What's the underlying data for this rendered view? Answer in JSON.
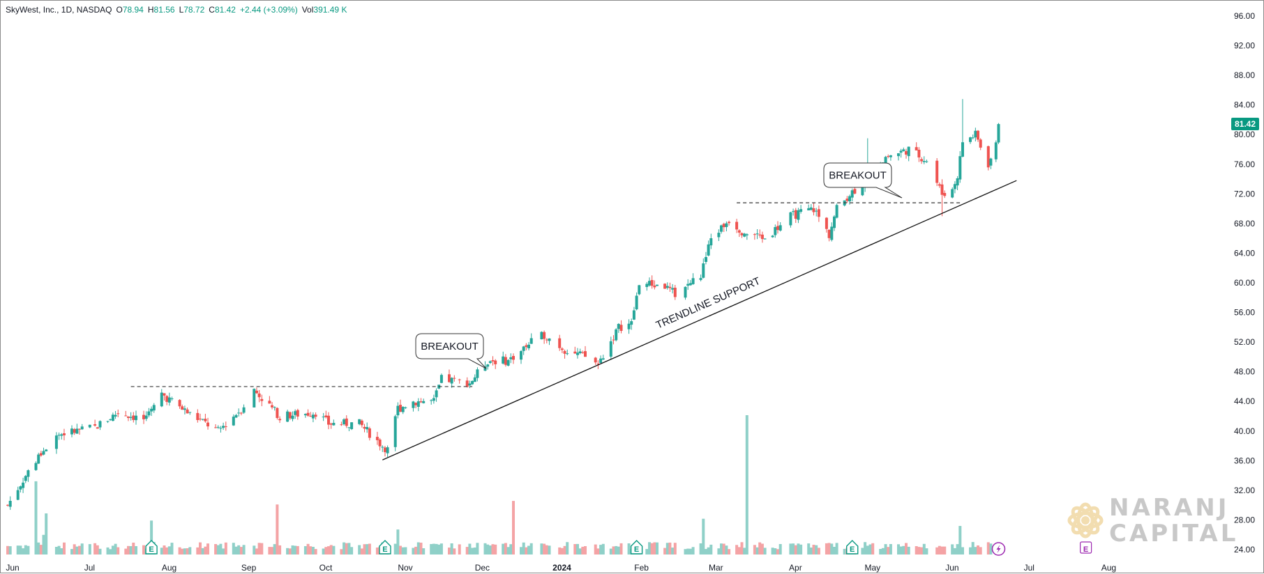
{
  "header": {
    "symbol": "SkyWest, Inc., 1D, NASDAQ",
    "open_label": "O",
    "open": "78.94",
    "high_label": "H",
    "high": "81.56",
    "low_label": "L",
    "low": "78.72",
    "close_label": "C",
    "close": "81.42",
    "change": "+2.44 (+3.09%)",
    "vol_label": "Vol",
    "volume": "391.49 K"
  },
  "last_price_tag": "81.42",
  "annotations": {
    "breakout_1": "BREAKOUT",
    "breakout_2": "BREAKOUT",
    "trendline_label": "TRENDLINE SUPPORT"
  },
  "watermark": {
    "line1": "NARANJ",
    "line2": "CAPITAL"
  },
  "colors": {
    "up": "#26a69a",
    "down": "#ef5350",
    "up_volume": "#8fd0c8",
    "down_volume": "#f4a3a5",
    "price_tag": "#089981",
    "earnings_marker": "#089981",
    "dividend_marker": "#9c27b0"
  },
  "chart_data": {
    "type": "candlestick",
    "x_axis": {
      "labels": [
        "Jun",
        "Jul",
        "Aug",
        "Sep",
        "Oct",
        "Nov",
        "Dec",
        "2024",
        "Feb",
        "Mar",
        "Apr",
        "May",
        "Jun",
        "Jul",
        "Aug"
      ],
      "bold_labels": [
        "2024"
      ]
    },
    "y_axis": {
      "ticks": [
        "24.00",
        "28.00",
        "32.00",
        "36.00",
        "40.00",
        "44.00",
        "48.00",
        "52.00",
        "56.00",
        "60.00",
        "64.00",
        "68.00",
        "72.00",
        "76.00",
        "80.00",
        "84.00",
        "88.00",
        "92.00",
        "96.00"
      ],
      "range": [
        23,
        97
      ],
      "side": "right"
    },
    "grid": false,
    "series": [
      {
        "name": "SkyWest, Inc.",
        "waypoints": [
          [
            "2023-06-01",
            30.0
          ],
          [
            "2023-06-08",
            34.0
          ],
          [
            "2023-06-14",
            37.0
          ],
          [
            "2023-06-20",
            39.5
          ],
          [
            "2023-07-05",
            40.5
          ],
          [
            "2023-07-14",
            42.5
          ],
          [
            "2023-07-25",
            41.5
          ],
          [
            "2023-07-31",
            45.0
          ],
          [
            "2023-08-10",
            42.5
          ],
          [
            "2023-08-22",
            40.0
          ],
          [
            "2023-08-31",
            43.0
          ],
          [
            "2023-09-05",
            45.5
          ],
          [
            "2023-09-15",
            42.0
          ],
          [
            "2023-09-29",
            42.5
          ],
          [
            "2023-10-04",
            41.0
          ],
          [
            "2023-10-16",
            41.0
          ],
          [
            "2023-10-25",
            38.0
          ],
          [
            "2023-10-27",
            37.5
          ],
          [
            "2023-10-31",
            43.0
          ],
          [
            "2023-11-06",
            44.0
          ],
          [
            "2023-11-14",
            44.0
          ],
          [
            "2023-11-17",
            47.0
          ],
          [
            "2023-11-28",
            46.5
          ],
          [
            "2023-12-05",
            49.5
          ],
          [
            "2023-12-13",
            49.5
          ],
          [
            "2023-12-22",
            52.0
          ],
          [
            "2023-12-27",
            53.0
          ],
          [
            "2024-01-04",
            51.0
          ],
          [
            "2024-01-12",
            50.0
          ],
          [
            "2024-01-17",
            49.0
          ],
          [
            "2024-01-25",
            54.0
          ],
          [
            "2024-01-30",
            54.5
          ],
          [
            "2024-02-02",
            60.0
          ],
          [
            "2024-02-12",
            59.5
          ],
          [
            "2024-02-16",
            58.5
          ],
          [
            "2024-02-26",
            61.0
          ],
          [
            "2024-03-01",
            66.0
          ],
          [
            "2024-03-08",
            68.5
          ],
          [
            "2024-03-13",
            67.0
          ],
          [
            "2024-03-22",
            66.0
          ],
          [
            "2024-04-01",
            69.0
          ],
          [
            "2024-04-10",
            70.0
          ],
          [
            "2024-04-16",
            66.5
          ],
          [
            "2024-04-19",
            70.0
          ],
          [
            "2024-04-24",
            72.0
          ],
          [
            "2024-05-01",
            74.0
          ],
          [
            "2024-05-08",
            77.0
          ],
          [
            "2024-05-17",
            78.0
          ],
          [
            "2024-05-24",
            76.5
          ],
          [
            "2024-05-30",
            72.0
          ],
          [
            "2024-06-03",
            72.5
          ],
          [
            "2024-06-05",
            74.5
          ],
          [
            "2024-06-07",
            79.0
          ],
          [
            "2024-06-12",
            80.0
          ],
          [
            "2024-06-17",
            76.0
          ],
          [
            "2024-06-20",
            78.5
          ],
          [
            "2024-06-21",
            81.42
          ]
        ],
        "last_bar": {
          "date": "2024-06-21",
          "open": 78.94,
          "high": 81.56,
          "low": 78.72,
          "close": 81.42,
          "volume": "391.49K"
        },
        "notable_lows": [
          [
            "2023-10-27",
            36.5
          ],
          [
            "2024-05-30",
            69.0
          ]
        ],
        "notable_highs": [
          [
            "2024-05-01",
            79.5
          ],
          [
            "2024-06-07",
            84.8
          ]
        ]
      }
    ],
    "volume": {
      "name": "Vol",
      "typical": 250000,
      "spikes": [
        [
          "2023-06-12",
          2050000
        ],
        [
          "2023-06-15",
          550000
        ],
        [
          "2023-06-16",
          1150000
        ],
        [
          "2023-07-27",
          950000
        ],
        [
          "2023-09-14",
          1400000
        ],
        [
          "2023-10-31",
          700000
        ],
        [
          "2023-12-15",
          1500000
        ],
        [
          "2024-02-27",
          1000000
        ],
        [
          "2024-03-15",
          3900000
        ],
        [
          "2024-06-06",
          800000
        ]
      ]
    },
    "levels": [
      {
        "kind": "horizontal-dashed",
        "y": 46.0,
        "from": "2023-07-19",
        "to": "2023-11-29"
      },
      {
        "kind": "horizontal-dashed",
        "y": 70.8,
        "from": "2024-03-11",
        "to": "2024-06-06"
      }
    ],
    "trendline": {
      "from": [
        "2023-10-25",
        36.1
      ],
      "to": [
        "2024-06-28",
        73.8
      ]
    },
    "events": {
      "earnings": [
        "2023-07-27",
        "2023-10-26",
        "2024-02-01",
        "2024-04-25"
      ],
      "upcoming_earnings": "2024-07-25",
      "dividend": "2024-06-21"
    },
    "annotations": [
      {
        "text": "BREAKOUT",
        "points_to": [
          "2023-11-16",
          47.0
        ]
      },
      {
        "text": "BREAKOUT",
        "points_to": [
          "2024-04-23",
          71.0
        ]
      },
      {
        "text": "TRENDLINE SUPPORT",
        "along": "trendline"
      }
    ]
  }
}
